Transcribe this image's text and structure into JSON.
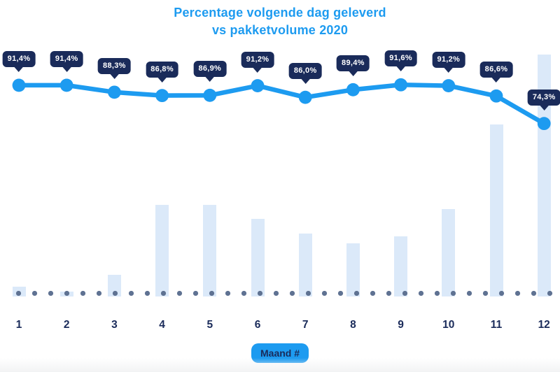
{
  "title": {
    "line1": "Percentage volgende dag geleverd",
    "line2": "vs pakketvolume 2020"
  },
  "x_axis_label": "Maand #",
  "colors": {
    "accent_blue": "#1D9BF0",
    "tooltip_navy": "#1A2B5A",
    "axis_text_navy": "#1A2B5A",
    "bar_fill": "#DBE9F9",
    "dotted_line": "#5F7292",
    "tooltip_text": "#FFFFFF",
    "background": "#FFFFFF"
  },
  "chart_data": {
    "type": "line+bar",
    "title": "Percentage volgende dag geleverd vs pakketvolume 2020",
    "xlabel": "Maand #",
    "categories": [
      "1",
      "2",
      "3",
      "4",
      "5",
      "6",
      "7",
      "8",
      "9",
      "10",
      "11",
      "12"
    ],
    "series": [
      {
        "name": "Percentage volgende dag geleverd",
        "type": "line",
        "unit": "%",
        "values": [
          91.4,
          91.4,
          88.3,
          86.8,
          86.9,
          91.2,
          86.0,
          89.4,
          91.6,
          91.2,
          86.6,
          74.3
        ],
        "labels": [
          "91,4%",
          "91,4%",
          "88,3%",
          "86,8%",
          "86,9%",
          "91,2%",
          "86,0%",
          "89,4%",
          "91,6%",
          "91,2%",
          "86,6%",
          "74,3%"
        ]
      },
      {
        "name": "Pakketvolume 2020",
        "type": "bar",
        "unit": "relative volume index (max month = 100, estimated from bar heights)",
        "values": [
          4,
          2,
          9,
          38,
          38,
          32,
          26,
          22,
          25,
          36,
          71,
          100
        ]
      }
    ],
    "ylim_line_pct": [
      0,
      100
    ],
    "grid": false,
    "legend": "none",
    "annotations": "percentage data labels shown as dark speech-bubble tooltips above each line point; slate dotted baseline at volume zero"
  }
}
